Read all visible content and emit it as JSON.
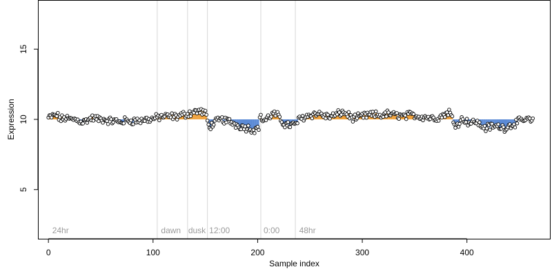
{
  "chart_data": {
    "type": "scatter",
    "title": "",
    "xlabel": "Sample index",
    "ylabel": "Expression",
    "xlim": [
      -10,
      480
    ],
    "ylim": [
      1.5,
      18.5
    ],
    "xticks": [
      0,
      100,
      200,
      300,
      400
    ],
    "yticks": [
      5,
      10,
      15
    ],
    "baseline": 10,
    "grid": false,
    "legend": "none",
    "colors": {
      "above_baseline": "#f0a13a",
      "below_baseline": "#5b8ad6",
      "point_fill": "#ffffff",
      "point_stroke": "#000000",
      "vertical_line": "#d6d6d6",
      "annotation_text": "#9a9a9a"
    },
    "vertical_lines": [
      104,
      133,
      152,
      203,
      236
    ],
    "annotations": [
      {
        "label": "24hr",
        "x": 3
      },
      {
        "label": "dawn",
        "x": 107
      },
      {
        "label": "dusk",
        "x": 133
      },
      {
        "label": "12:00",
        "x": 153
      },
      {
        "label": "0:00",
        "x": 205
      },
      {
        "label": "48hr",
        "x": 239
      }
    ],
    "anchors": [
      [
        0,
        10.1
      ],
      [
        3,
        10.2
      ],
      [
        8,
        10.3
      ],
      [
        12,
        10.0
      ],
      [
        16,
        10.1
      ],
      [
        20,
        10.0
      ],
      [
        25,
        10.0
      ],
      [
        30,
        9.9
      ],
      [
        33,
        9.8
      ],
      [
        38,
        10.0
      ],
      [
        43,
        10.1
      ],
      [
        48,
        10.0
      ],
      [
        53,
        10.0
      ],
      [
        58,
        9.9
      ],
      [
        63,
        9.9
      ],
      [
        68,
        9.8
      ],
      [
        73,
        9.9
      ],
      [
        78,
        9.9
      ],
      [
        83,
        9.9
      ],
      [
        88,
        9.9
      ],
      [
        93,
        10.0
      ],
      [
        98,
        10.0
      ],
      [
        103,
        10.1
      ],
      [
        108,
        10.2
      ],
      [
        113,
        10.2
      ],
      [
        118,
        10.2
      ],
      [
        123,
        10.2
      ],
      [
        128,
        10.3
      ],
      [
        133,
        10.4
      ],
      [
        138,
        10.5
      ],
      [
        143,
        10.6
      ],
      [
        148,
        10.5
      ],
      [
        151,
        10.3
      ],
      [
        153,
        9.5
      ],
      [
        156,
        9.6
      ],
      [
        160,
        9.8
      ],
      [
        165,
        10.0
      ],
      [
        170,
        9.9
      ],
      [
        175,
        9.8
      ],
      [
        180,
        9.6
      ],
      [
        185,
        9.5
      ],
      [
        190,
        9.4
      ],
      [
        195,
        9.3
      ],
      [
        199,
        9.3
      ],
      [
        201,
        9.5
      ],
      [
        203,
        10.3
      ],
      [
        205,
        9.9
      ],
      [
        210,
        10.1
      ],
      [
        215,
        10.4
      ],
      [
        220,
        10.2
      ],
      [
        225,
        9.7
      ],
      [
        230,
        9.6
      ],
      [
        235,
        9.6
      ],
      [
        240,
        10.0
      ],
      [
        245,
        10.2
      ],
      [
        250,
        10.3
      ],
      [
        255,
        10.4
      ],
      [
        260,
        10.4
      ],
      [
        265,
        10.2
      ],
      [
        270,
        10.2
      ],
      [
        275,
        10.3
      ],
      [
        280,
        10.5
      ],
      [
        285,
        10.4
      ],
      [
        290,
        10.1
      ],
      [
        295,
        10.1
      ],
      [
        300,
        10.2
      ],
      [
        305,
        10.3
      ],
      [
        310,
        10.3
      ],
      [
        315,
        10.3
      ],
      [
        320,
        10.3
      ],
      [
        325,
        10.4
      ],
      [
        330,
        10.3
      ],
      [
        335,
        10.3
      ],
      [
        340,
        10.2
      ],
      [
        345,
        10.3
      ],
      [
        350,
        10.3
      ],
      [
        355,
        10.2
      ],
      [
        360,
        10.2
      ],
      [
        365,
        10.1
      ],
      [
        370,
        10.1
      ],
      [
        375,
        10.2
      ],
      [
        380,
        10.4
      ],
      [
        383,
        10.6
      ],
      [
        385,
        10.2
      ],
      [
        388,
        9.7
      ],
      [
        391,
        9.7
      ],
      [
        395,
        10.0
      ],
      [
        400,
        9.9
      ],
      [
        404,
        9.7
      ],
      [
        408,
        9.9
      ],
      [
        412,
        9.6
      ],
      [
        418,
        9.4
      ],
      [
        424,
        9.5
      ],
      [
        430,
        9.5
      ],
      [
        436,
        9.4
      ],
      [
        442,
        9.6
      ],
      [
        448,
        9.8
      ],
      [
        453,
        9.9
      ],
      [
        458,
        10.0
      ],
      [
        463,
        9.8
      ]
    ],
    "n_samples": 464
  }
}
